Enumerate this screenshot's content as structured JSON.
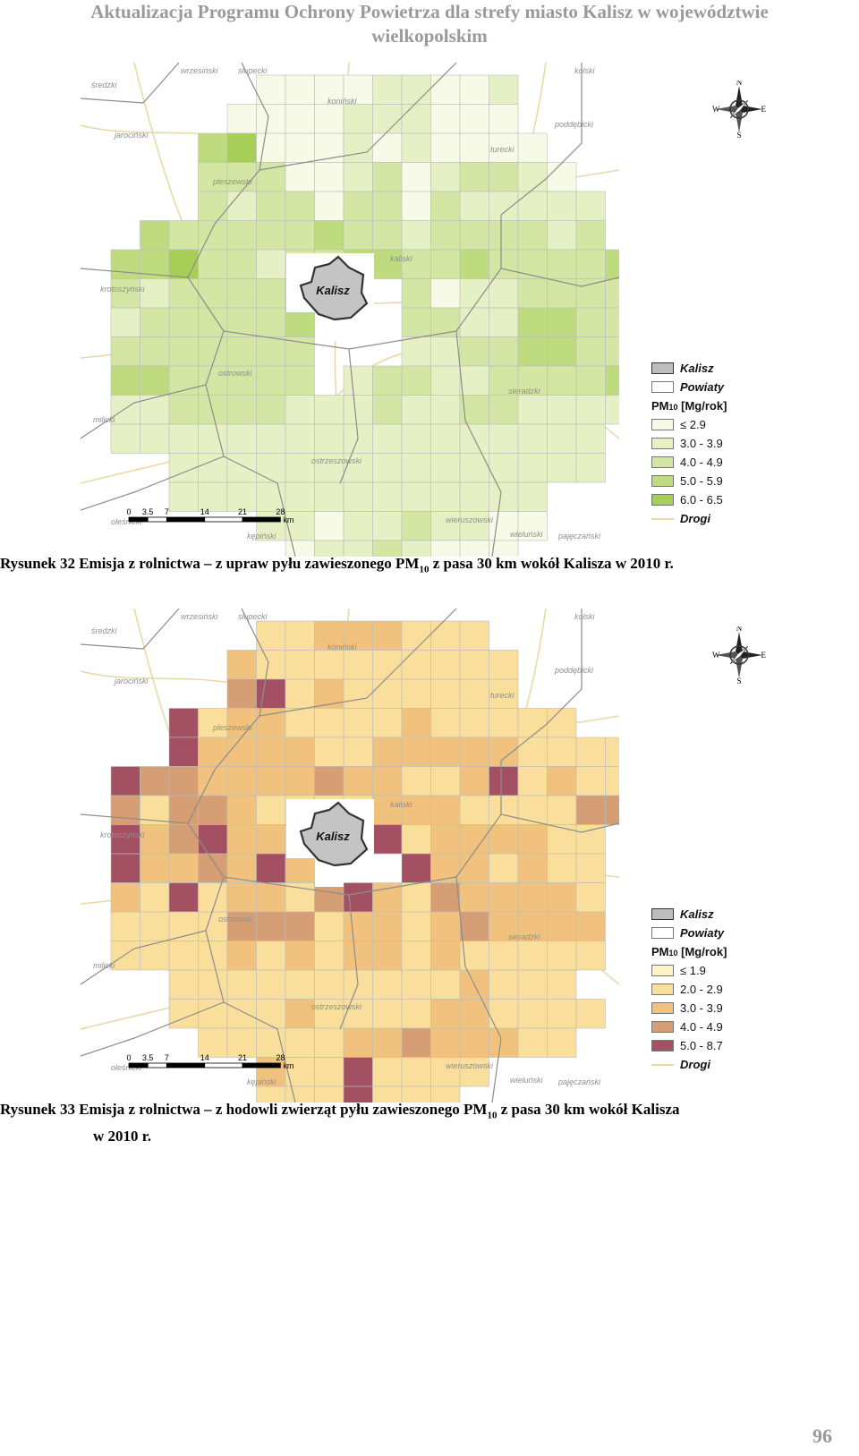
{
  "header": {
    "line1": "Aktualizacja Programu Ochrony Powietrza dla strefy miasto Kalisz w województwie",
    "line2": "wielkopolskim"
  },
  "map_labels": {
    "city": "Kalisz",
    "counties": [
      "średzki",
      "wrzesiński",
      "słupecki",
      "kolski",
      "jarociński",
      "koniński",
      "turecki",
      "poddębicki",
      "pleszewski",
      "kaliski",
      "krotoszyński",
      "ostrowski",
      "sieradzki",
      "milicki",
      "ostrzeszowski",
      "oleśnicki",
      "kępiński",
      "wieruszowski",
      "wieluński",
      "pajęczański"
    ],
    "scale_ticks": [
      "0",
      "3.5",
      "7",
      "14",
      "21",
      "28"
    ],
    "scale_unit": "km",
    "compass": {
      "n": "N",
      "s": "S",
      "e": "E",
      "w": "W"
    }
  },
  "figure1": {
    "caption_a": "Rysunek 32 Emisja z rolnictwa – z upraw pyłu zawieszonego PM",
    "caption_sub": "10",
    "caption_b": " z pasa 30 km wokół Kalisza w 2010 r.",
    "legend": {
      "city": "Kalisz",
      "powiaty": "Powiaty",
      "pm_prefix": "PM",
      "pm_sub": "10",
      "pm_suffix": " [Mg/rok]",
      "classes": [
        "≤ 2.9",
        "3.0 - 3.9",
        "4.0 - 4.9",
        "5.0 - 5.9",
        "6.0 - 6.5"
      ],
      "roads": "Drogi"
    },
    "colors": [
      "#f6fae6",
      "#e5f0c5",
      "#d3e6a3",
      "#bedb80",
      "#a6cf57"
    ]
  },
  "figure2": {
    "caption_a": "Rysunek 33 Emisja z rolnictwa – z hodowli zwierząt pyłu zawieszonego PM",
    "caption_sub": "10",
    "caption_b": " z pasa 30 km wokół Kalisza",
    "caption_c": "w 2010 r.",
    "legend": {
      "city": "Kalisz",
      "powiaty": "Powiaty",
      "pm_prefix": "PM",
      "pm_sub": "10",
      "pm_suffix": " [Mg/rok]",
      "classes": [
        "≤ 1.9",
        "2.0 - 2.9",
        "3.0 - 3.9",
        "4.0 - 4.9",
        "5.0 - 8.7"
      ],
      "roads": "Drogi"
    },
    "colors": [
      "#fdf3c7",
      "#f9df9b",
      "#f1c27d",
      "#d59e74",
      "#a35162"
    ]
  },
  "grid1": [
    "....000011001....",
    "...0000111000....",
    "..340001010000...",
    "..2220012012210..",
    "..21220220211111.",
    ".3222223221222212.",
    "3342212233223222233",
    "21222234..20112222",
    "1222223...22113322",
    "2222222...11223322",
    "3322222.1221122223",
    "1122221112112211111",
    "11111111111111111.",
    "..111111111111111.",
    "..1111111111111...",
    "....1101121100...",
    ".....01121000...."
  ],
  "grid2": [
    ".....11222111......",
    "....2111111111.....",
    "....3412111111.....",
    "..41221111211111...",
    "..4222211222221111.",
    "4332222322112412111",
    "3133211112221111331",
    "4234221..41222211..",
    "4223242...4221211..",
    "21412213421322221..",
    "11113331221232222..",
    "11112121221211111..",
    "..11111111112111...",
    "..111121111221111..",
    "...1111122322211...",
    ".....21141111......",
    ".....1114111......."
  ],
  "page_number": "96"
}
